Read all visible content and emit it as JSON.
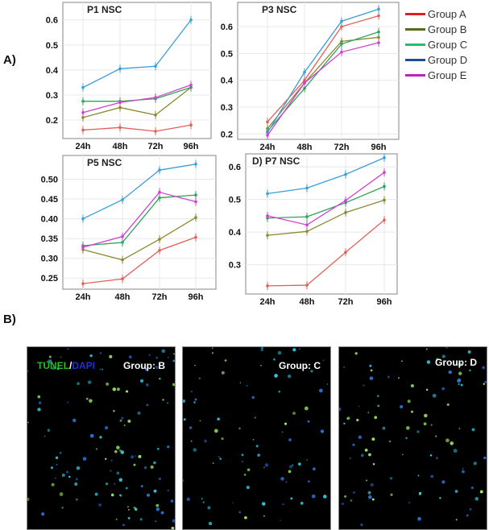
{
  "figure": {
    "label_a": "A)",
    "label_b": "B)"
  },
  "legend": [
    {
      "label": "Group A",
      "color": "#e02020"
    },
    {
      "label": "Group B",
      "color": "#556b1f"
    },
    {
      "label": "Group C",
      "color": "#20c070"
    },
    {
      "label": "Group D",
      "color": "#1f4f8f"
    },
    {
      "label": "Group E",
      "color": "#c020c0"
    }
  ],
  "chart_data": [
    {
      "type": "line",
      "title": "P1 NSC",
      "categories": [
        "24h",
        "48h",
        "72h",
        "96h"
      ],
      "yticks": [
        "0.2",
        "0.3",
        "0.4",
        "0.5",
        "0.6"
      ],
      "ylim": [
        0.126,
        0.67
      ],
      "grid": true,
      "series": [
        {
          "name": "Group A",
          "color": "#e0605a",
          "values": [
            0.16,
            0.17,
            0.155,
            0.18
          ]
        },
        {
          "name": "Group B",
          "color": "#8a8a30",
          "values": [
            0.21,
            0.25,
            0.22,
            0.33
          ]
        },
        {
          "name": "Group C",
          "color": "#2ea35c",
          "values": [
            0.275,
            0.275,
            0.285,
            0.33
          ]
        },
        {
          "name": "Group D",
          "color": "#3a9fd6",
          "values": [
            0.33,
            0.405,
            0.415,
            0.6
          ]
        },
        {
          "name": "Group E",
          "color": "#d040d0",
          "values": [
            0.23,
            0.27,
            0.29,
            0.34
          ]
        }
      ]
    },
    {
      "type": "line",
      "title": "P3 NSC",
      "categories": [
        "24h",
        "48h",
        "72h",
        "96h"
      ],
      "yticks": [
        "0.2",
        "0.3",
        "0.4",
        "0.5",
        "0.6"
      ],
      "ylim": [
        0.18,
        0.69
      ],
      "grid": true,
      "series": [
        {
          "name": "Group A",
          "color": "#e0605a",
          "values": [
            0.245,
            0.4,
            0.6,
            0.64
          ]
        },
        {
          "name": "Group B",
          "color": "#8a8a30",
          "values": [
            0.22,
            0.39,
            0.545,
            0.56
          ]
        },
        {
          "name": "Group C",
          "color": "#2ea35c",
          "values": [
            0.21,
            0.37,
            0.535,
            0.58
          ]
        },
        {
          "name": "Group D",
          "color": "#3a9fd6",
          "values": [
            0.205,
            0.43,
            0.62,
            0.665
          ]
        },
        {
          "name": "Group E",
          "color": "#d040d0",
          "values": [
            0.195,
            0.39,
            0.505,
            0.54
          ]
        }
      ]
    },
    {
      "type": "line",
      "title": "P5 NSC",
      "categories": [
        "24h",
        "48h",
        "72h",
        "96h"
      ],
      "yticks": [
        "0.25",
        "0.30",
        "0.35",
        "0.40",
        "0.45",
        "0.50"
      ],
      "ylim": [
        0.222,
        0.56
      ],
      "grid": true,
      "series": [
        {
          "name": "Group A",
          "color": "#e0605a",
          "values": [
            0.236,
            0.248,
            0.32,
            0.353
          ]
        },
        {
          "name": "Group B",
          "color": "#8a8a30",
          "values": [
            0.322,
            0.296,
            0.348,
            0.403
          ]
        },
        {
          "name": "Group C",
          "color": "#2ea35c",
          "values": [
            0.332,
            0.34,
            0.453,
            0.46
          ]
        },
        {
          "name": "Group D",
          "color": "#3a9fd6",
          "values": [
            0.4,
            0.448,
            0.523,
            0.538
          ]
        },
        {
          "name": "Group E",
          "color": "#d040d0",
          "values": [
            0.328,
            0.355,
            0.467,
            0.443
          ]
        }
      ]
    },
    {
      "type": "line",
      "title": "D)  P7 NSC",
      "categories": [
        "24h",
        "48h",
        "72h",
        "96h"
      ],
      "yticks": [
        "0.3",
        "0.4",
        "0.5",
        "0.6"
      ],
      "ylim": [
        0.21,
        0.64
      ],
      "grid": true,
      "series": [
        {
          "name": "Group A",
          "color": "#e0605a",
          "values": [
            0.235,
            0.237,
            0.338,
            0.437
          ]
        },
        {
          "name": "Group B",
          "color": "#8a8a30",
          "values": [
            0.39,
            0.402,
            0.46,
            0.498
          ]
        },
        {
          "name": "Group C",
          "color": "#2ea35c",
          "values": [
            0.443,
            0.447,
            0.49,
            0.54
          ]
        },
        {
          "name": "Group D",
          "color": "#3a9fd6",
          "values": [
            0.518,
            0.535,
            0.577,
            0.628
          ]
        },
        {
          "name": "Group E",
          "color": "#d040d0",
          "values": [
            0.45,
            0.422,
            0.497,
            0.583
          ]
        }
      ]
    }
  ],
  "microscopy": {
    "stain_tunel": "TUNEL",
    "stain_sep": "/",
    "stain_dapi": "DAPI",
    "panels": [
      {
        "group": "Group: B"
      },
      {
        "group": "Group: C"
      },
      {
        "group": "Group: D"
      }
    ]
  }
}
